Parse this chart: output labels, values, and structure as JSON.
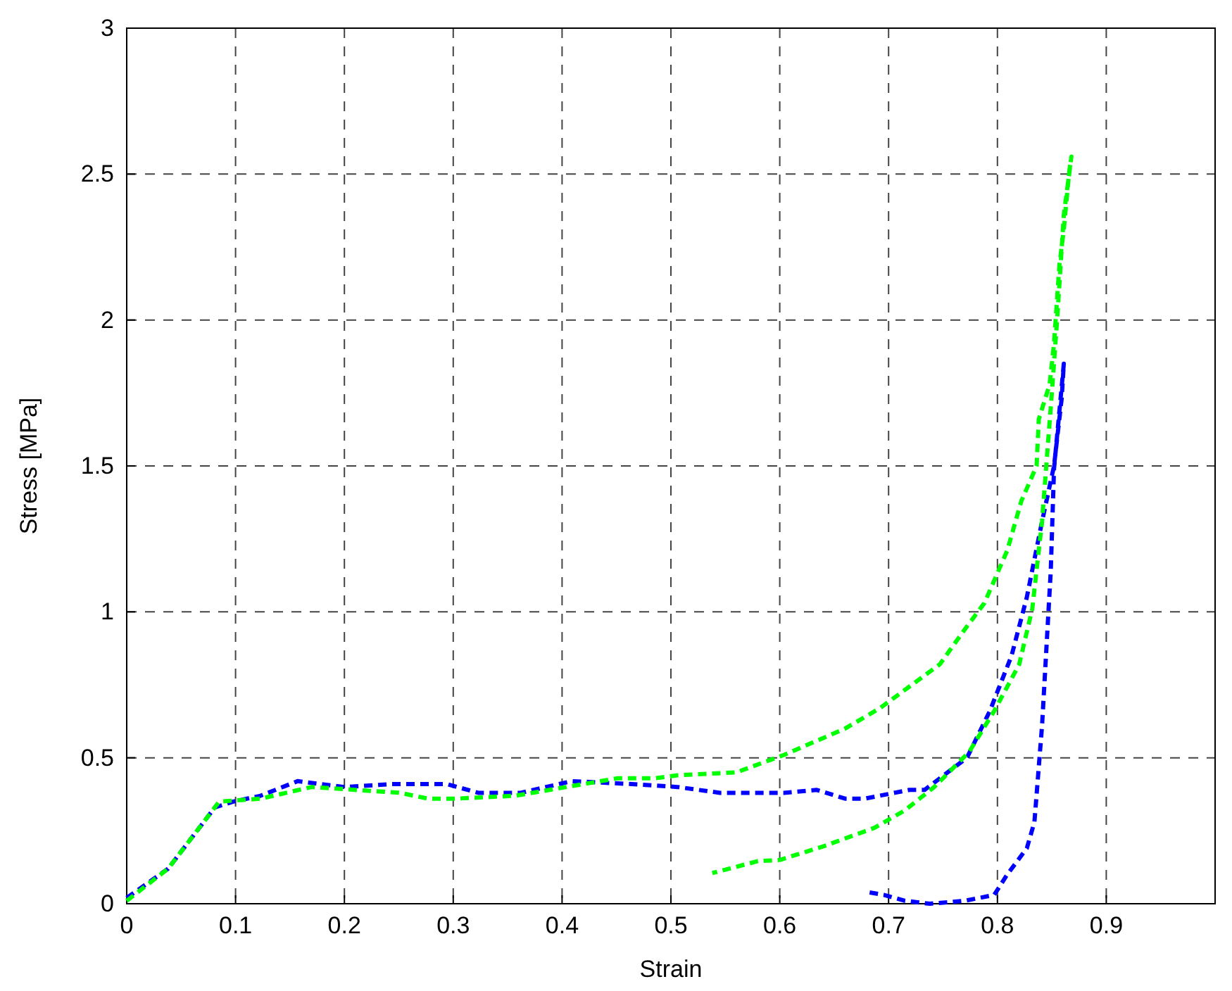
{
  "chart_data": {
    "type": "line",
    "xlabel": "Strain",
    "ylabel": "Stress [MPa]",
    "xlim": [
      0,
      1
    ],
    "ylim": [
      0,
      3
    ],
    "xticks": [
      0,
      0.1,
      0.2,
      0.3,
      0.4,
      0.5,
      0.6,
      0.7,
      0.8,
      0.9
    ],
    "yticks": [
      0,
      0.5,
      1,
      1.5,
      2,
      2.5,
      3
    ],
    "grid": true,
    "line_style": "dashed",
    "marker": "none",
    "series": [
      {
        "color": "#0000ff",
        "x": [
          0,
          0.038,
          0.081,
          0.098,
          0.123,
          0.157,
          0.2,
          0.243,
          0.294,
          0.323,
          0.362,
          0.409,
          0.464,
          0.506,
          0.545,
          0.604,
          0.634,
          0.66,
          0.678,
          0.719,
          0.733,
          0.772,
          0.793,
          0.813,
          0.827,
          0.841,
          0.852,
          0.859,
          0.861,
          0.852,
          0.849,
          0.841,
          0.834,
          0.827,
          0.809,
          0.797,
          0.77,
          0.738,
          0.715,
          0.696,
          0.68
        ],
        "values": [
          0.02,
          0.12,
          0.33,
          0.35,
          0.37,
          0.42,
          0.4,
          0.41,
          0.41,
          0.38,
          0.38,
          0.42,
          0.41,
          0.4,
          0.38,
          0.38,
          0.39,
          0.36,
          0.36,
          0.39,
          0.39,
          0.5,
          0.66,
          0.85,
          1.05,
          1.31,
          1.5,
          1.73,
          1.85,
          1.49,
          1.14,
          0.61,
          0.28,
          0.19,
          0.1,
          0.03,
          0.01,
          0,
          0.01,
          0.03,
          0.04
        ]
      },
      {
        "color": "#00ff00",
        "x": [
          0,
          0.038,
          0.085,
          0.123,
          0.17,
          0.251,
          0.277,
          0.302,
          0.357,
          0.404,
          0.451,
          0.485,
          0.506,
          0.56,
          0.604,
          0.66,
          0.692,
          0.747,
          0.77,
          0.788,
          0.809,
          0.822,
          0.836,
          0.838,
          0.848,
          0.852,
          0.857,
          0.861,
          0.866,
          0.868,
          0.861,
          0.855,
          0.85,
          0.841,
          0.832,
          0.82,
          0.797,
          0.774,
          0.742,
          0.715,
          0.687,
          0.65,
          0.643,
          0.6,
          0.58,
          0.538
        ],
        "values": [
          0.01,
          0.12,
          0.35,
          0.36,
          0.4,
          0.38,
          0.36,
          0.36,
          0.37,
          0.4,
          0.43,
          0.43,
          0.44,
          0.45,
          0.51,
          0.6,
          0.67,
          0.82,
          0.94,
          1.03,
          1.21,
          1.38,
          1.5,
          1.66,
          1.78,
          1.92,
          2.19,
          2.31,
          2.51,
          2.56,
          2.36,
          2.01,
          1.75,
          1.31,
          1.01,
          0.82,
          0.66,
          0.52,
          0.4,
          0.32,
          0.26,
          0.21,
          0.2,
          0.15,
          0.146,
          0.105
        ]
      }
    ]
  }
}
